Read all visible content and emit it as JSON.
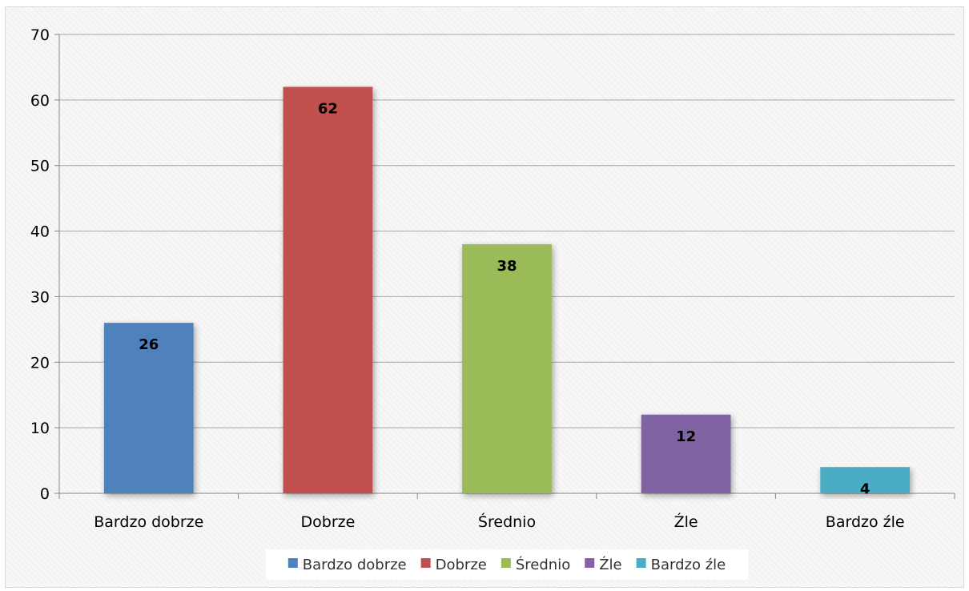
{
  "chart_data": {
    "type": "bar",
    "categories": [
      "Bardzo dobrze",
      "Dobrze",
      "Średnio",
      "Źle",
      "Bardzo źle"
    ],
    "values": [
      26,
      62,
      38,
      12,
      4
    ],
    "colors": [
      "#4f81bd",
      "#c0504d",
      "#9bbb59",
      "#8064a2",
      "#4bacc6"
    ],
    "title": "",
    "xlabel": "",
    "ylabel": "",
    "ylim": [
      0,
      70
    ],
    "yticks": [
      0,
      10,
      20,
      30,
      40,
      50,
      60,
      70
    ],
    "grid": true,
    "legend": {
      "position": "bottom",
      "entries": [
        "Bardzo dobrze",
        "Dobrze",
        "Średnio",
        "Źle",
        "Bardzo źle"
      ]
    },
    "data_labels": [
      "26",
      "62",
      "38",
      "12",
      "4"
    ]
  }
}
